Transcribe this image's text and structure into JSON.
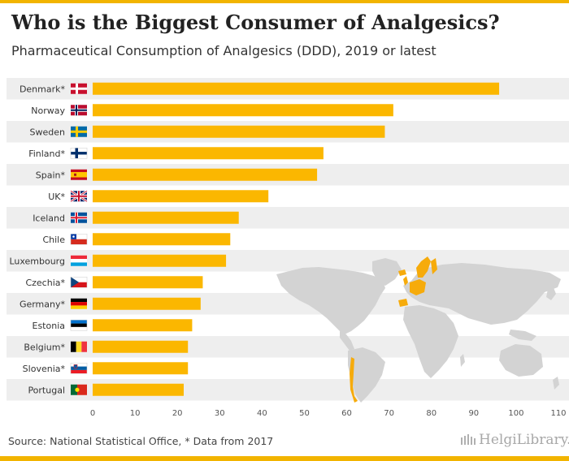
{
  "header": {
    "title": "Who is the Biggest Consumer of Analgesics?",
    "subtitle": "Pharmaceutical Consumption of Analgesics (DDD), 2019 or latest"
  },
  "footer": {
    "source": "Source: National Statistical Office, * Data from 2017",
    "brand": "HelgiLibrary."
  },
  "colors": {
    "bar": "#fbb700",
    "band": "#eeeeee",
    "map_land": "#d3d3d3",
    "map_highlight": "#f6ab0b",
    "accent": "#f2b400"
  },
  "chart_data": {
    "type": "bar",
    "orientation": "horizontal",
    "categories": [
      "Denmark*",
      "Norway",
      "Sweden",
      "Finland*",
      "Spain*",
      "UK*",
      "Iceland",
      "Chile",
      "Luxembourg",
      "Czechia*",
      "Germany*",
      "Estonia",
      "Belgium*",
      "Slovenia*",
      "Portugal"
    ],
    "values": [
      96,
      71,
      69,
      54.5,
      53,
      41.5,
      34.5,
      32.5,
      31.5,
      26,
      25.5,
      23.5,
      22.5,
      22.5,
      21.5
    ],
    "flags": [
      "denmark",
      "norway",
      "sweden",
      "finland",
      "spain",
      "uk",
      "iceland",
      "chile",
      "luxembourg",
      "czechia",
      "germany",
      "estonia",
      "belgium",
      "slovenia",
      "portugal"
    ],
    "xlim": [
      0,
      110
    ],
    "x_ticks": [
      0,
      10,
      20,
      30,
      40,
      50,
      60,
      70,
      80,
      90,
      100,
      110
    ],
    "grid": false,
    "background_map": "world"
  }
}
